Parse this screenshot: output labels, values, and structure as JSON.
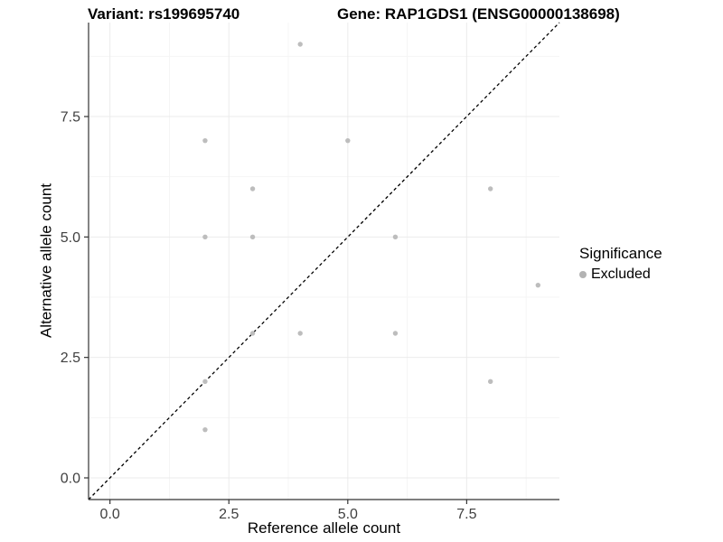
{
  "titles": {
    "variant": "Variant: rs199695740",
    "gene": "Gene: RAP1GDS1 (ENSG00000138698)"
  },
  "chart_data": {
    "type": "scatter",
    "title_left": "Variant: rs199695740",
    "title_right": "Gene: RAP1GDS1 (ENSG00000138698)",
    "xlabel": "Reference allele count",
    "ylabel": "Alternative allele count",
    "xlim": [
      -0.45,
      9.45
    ],
    "ylim": [
      -0.45,
      9.45
    ],
    "x_ticks": [
      0,
      2.5,
      5,
      7.5
    ],
    "y_ticks": [
      0,
      2.5,
      5,
      7.5
    ],
    "x_tick_labels": [
      "0.0",
      "2.5",
      "5.0",
      "7.5"
    ],
    "y_tick_labels": [
      "0.0",
      "2.5",
      "5.0",
      "7.5"
    ],
    "minor_gridlines": [
      1.25,
      3.75,
      6.25,
      8.75
    ],
    "grid": true,
    "series": [
      {
        "name": "Excluded",
        "color": "#bdbdbd",
        "points": [
          [
            2,
            1
          ],
          [
            2,
            2
          ],
          [
            2,
            5
          ],
          [
            2,
            7
          ],
          [
            3,
            3
          ],
          [
            3,
            5
          ],
          [
            3,
            6
          ],
          [
            4,
            3
          ],
          [
            4,
            9
          ],
          [
            5,
            7
          ],
          [
            6,
            3
          ],
          [
            6,
            5
          ],
          [
            8,
            2
          ],
          [
            8,
            6
          ],
          [
            9,
            4
          ]
        ]
      }
    ],
    "reference_line": {
      "type": "identity",
      "style": "dashed",
      "color": "#000000"
    },
    "legend": {
      "title": "Significance",
      "position": "right",
      "items": [
        {
          "label": "Excluded",
          "color": "#b3b3b3"
        }
      ]
    },
    "style_colors": {
      "axis_line": "#333333",
      "tick_label": "#404040",
      "major_grid": "#ebebeb",
      "minor_grid": "#f5f5f5"
    }
  }
}
